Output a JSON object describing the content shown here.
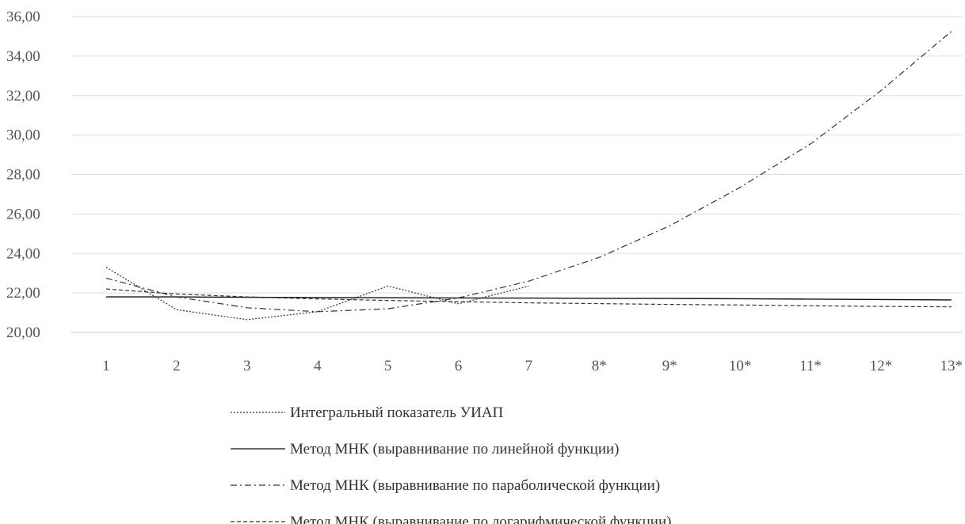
{
  "chart_data": {
    "type": "line",
    "categories": [
      "1",
      "2",
      "3",
      "4",
      "5",
      "6",
      "7",
      "8*",
      "9*",
      "10*",
      "11*",
      "12*",
      "13*"
    ],
    "ylim": [
      20,
      36
    ],
    "y_ticks": [
      "20,00",
      "22,00",
      "24,00",
      "26,00",
      "28,00",
      "30,00",
      "32,00",
      "34,00",
      "36,00"
    ],
    "grid": true,
    "legend_position": "bottom",
    "series": [
      {
        "name": "Интегральный показатель УИАП",
        "style": "dotted",
        "values": [
          23.3,
          21.15,
          20.65,
          21.05,
          22.35,
          21.45,
          22.35,
          null,
          null,
          null,
          null,
          null,
          null
        ]
      },
      {
        "name": "Метод МНК (выравнивание по линейной функции)",
        "style": "solid",
        "values": [
          21.8,
          21.8,
          21.78,
          21.77,
          21.76,
          21.75,
          21.74,
          21.73,
          21.72,
          21.71,
          21.69,
          21.67,
          21.65
        ]
      },
      {
        "name": "Метод МНК (выравнивание по параболической функции)",
        "style": "dash-dot",
        "values": [
          22.75,
          21.8,
          21.25,
          21.05,
          21.2,
          21.75,
          22.6,
          23.8,
          25.4,
          27.35,
          29.55,
          32.25,
          35.25
        ]
      },
      {
        "name": "Метод МНК (выравнивание по логарифмической функции)",
        "style": "dashed",
        "values": [
          22.2,
          21.95,
          21.8,
          21.7,
          21.62,
          21.56,
          21.5,
          21.46,
          21.42,
          21.39,
          21.35,
          21.32,
          21.3
        ]
      }
    ]
  }
}
